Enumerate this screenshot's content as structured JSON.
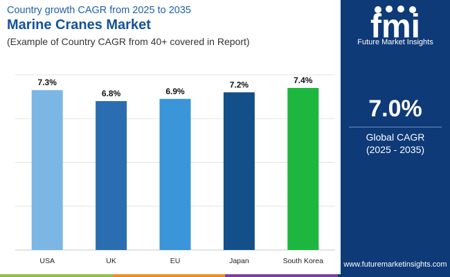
{
  "header": {
    "subtitle": "Country growth CAGR from 2025 to 2035",
    "title": "Marine Cranes Market",
    "note": "(Example of Country CAGR from 40+ covered in Report)"
  },
  "chart_data": {
    "type": "bar",
    "categories": [
      "USA",
      "UK",
      "EU",
      "Japan",
      "South Korea"
    ],
    "values": [
      7.3,
      6.8,
      6.9,
      7.2,
      7.4
    ],
    "data_labels": [
      "7.3%",
      "6.8%",
      "6.9%",
      "7.2%",
      "7.4%"
    ],
    "colors": [
      "#7cb6e4",
      "#2a6db0",
      "#3a96d8",
      "#13508a",
      "#1db73f"
    ],
    "title": "",
    "xlabel": "",
    "ylabel": "",
    "ylim": [
      0,
      8
    ],
    "grid": true,
    "legend": "none"
  },
  "sidepanel": {
    "logo_text": "fmi",
    "logo_caption": "Future Market Insights",
    "kpi_value": "7.0%",
    "kpi_label_line1": "Global CAGR",
    "kpi_label_line2": "(2025 - 2035)",
    "website": "www.futuremarketinsights.com",
    "background_color": "#0f3a78"
  },
  "bottom_strip_colors": [
    "#8bc34a",
    "#f28c28",
    "#7b3fa0",
    "#0f3a78"
  ]
}
